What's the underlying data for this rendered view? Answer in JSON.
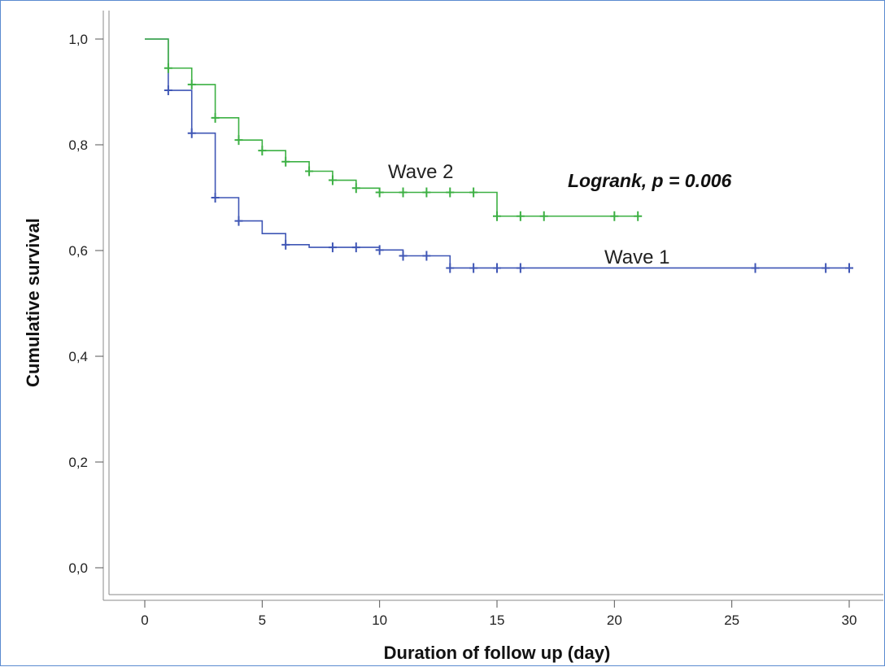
{
  "chart_data": {
    "type": "line",
    "title": "",
    "xlabel": "Duration of follow up (day)",
    "ylabel": "Cumulative survival",
    "xlim": [
      0,
      30
    ],
    "ylim": [
      0,
      1
    ],
    "x_ticks": [
      0,
      5,
      10,
      15,
      20,
      25,
      30
    ],
    "x_tick_labels": [
      "0",
      "5",
      "10",
      "15",
      "20",
      "25",
      "30"
    ],
    "y_ticks": [
      0,
      0.2,
      0.4,
      0.6,
      0.8,
      1.0
    ],
    "y_tick_labels": [
      "0,0",
      "0,2",
      "0,4",
      "0,6",
      "0,8",
      "1,0"
    ],
    "grid": false,
    "annotation": "Logrank, p = 0.006",
    "series": [
      {
        "name": "Wave 1",
        "color": "#3f56b5",
        "steps": [
          [
            0,
            1.0
          ],
          [
            1,
            0.903
          ],
          [
            2,
            0.822
          ],
          [
            3,
            0.7
          ],
          [
            4,
            0.656
          ],
          [
            5,
            0.632
          ],
          [
            6,
            0.611
          ],
          [
            7,
            0.606
          ],
          [
            10,
            0.601
          ],
          [
            11,
            0.59
          ],
          [
            13,
            0.567
          ],
          [
            30,
            0.567
          ]
        ],
        "censored": [
          1,
          2,
          3,
          4,
          6,
          8,
          9,
          10,
          11,
          12,
          13,
          14,
          15,
          16,
          26,
          29,
          30
        ]
      },
      {
        "name": "Wave 2",
        "color": "#3cb043",
        "steps": [
          [
            0,
            1.0
          ],
          [
            1,
            0.945
          ],
          [
            2,
            0.914
          ],
          [
            3,
            0.851
          ],
          [
            4,
            0.809
          ],
          [
            5,
            0.789
          ],
          [
            6,
            0.768
          ],
          [
            7,
            0.75
          ],
          [
            8,
            0.733
          ],
          [
            9,
            0.718
          ],
          [
            10,
            0.71
          ],
          [
            15,
            0.665
          ],
          [
            21,
            0.665
          ]
        ],
        "censored": [
          1,
          2,
          3,
          4,
          5,
          6,
          7,
          8,
          9,
          10,
          11,
          12,
          13,
          14,
          15,
          16,
          17,
          20,
          21
        ]
      }
    ]
  }
}
